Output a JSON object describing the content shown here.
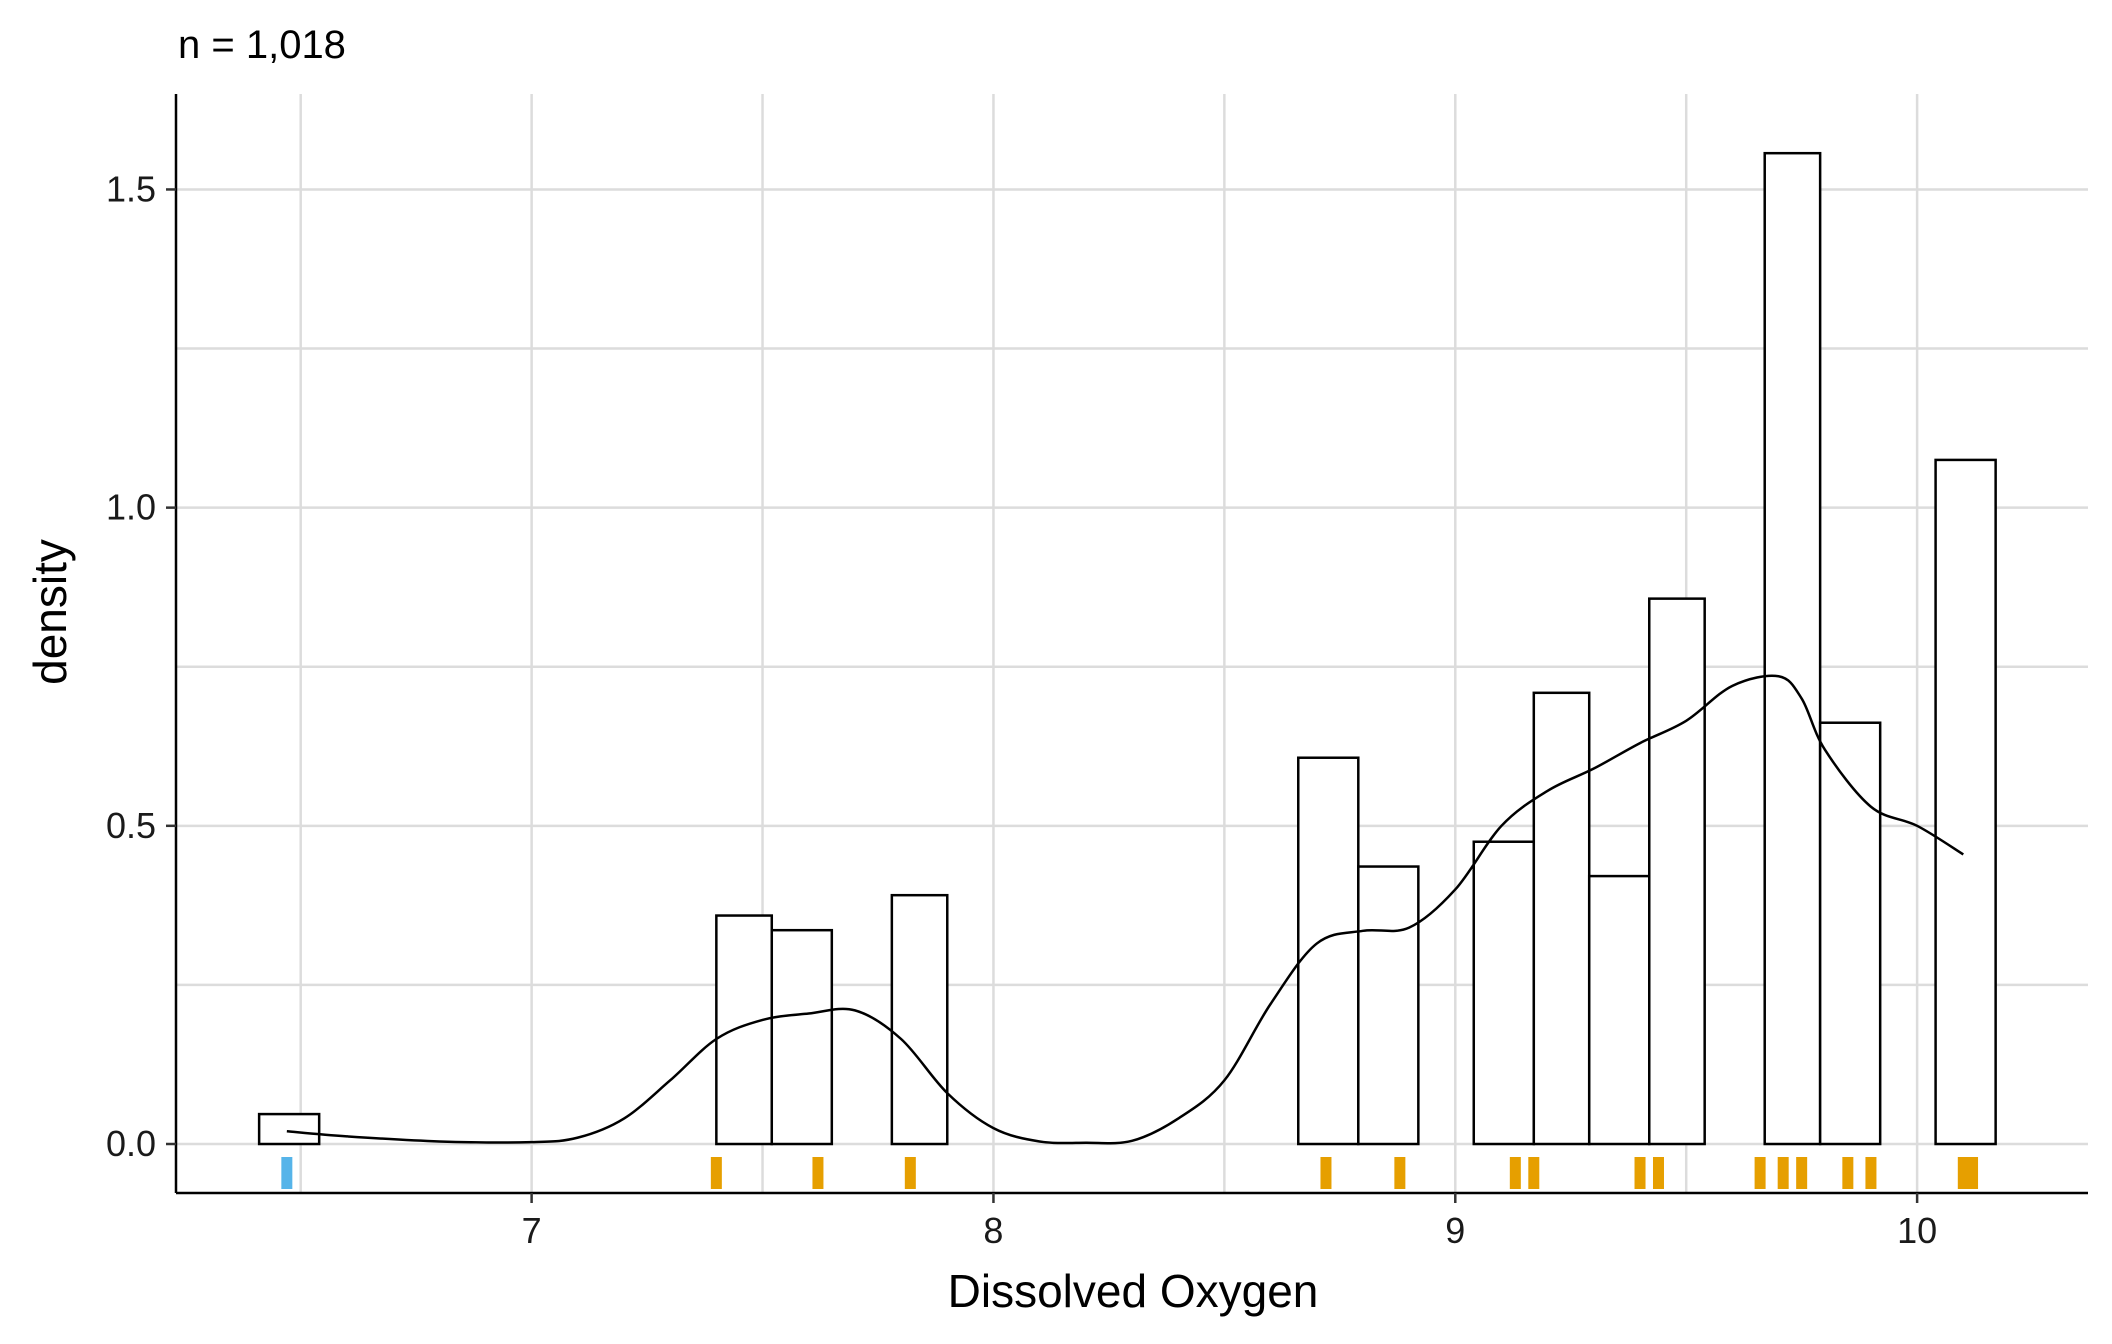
{
  "chart_data": {
    "type": "bar",
    "subtitle": "n = 1,018",
    "xlabel": "Dissolved Oxygen",
    "ylabel": "density",
    "xlim": [
      6.23,
      10.37
    ],
    "ylim": [
      -0.077,
      1.65
    ],
    "x_ticks": [
      7,
      8,
      9,
      10
    ],
    "x_tick_labels": [
      "7",
      "8",
      "9",
      "10"
    ],
    "x_minor_gridlines": [
      6.5,
      7.5,
      8.5,
      9.5
    ],
    "y_ticks": [
      0.0,
      0.5,
      1.0,
      1.5
    ],
    "y_tick_labels": [
      "0.0",
      "0.5",
      "1.0",
      "1.5"
    ],
    "y_minor_gridlines": [
      0.25,
      0.75,
      1.25
    ],
    "grid": true,
    "histogram": {
      "bin_width": 0.126,
      "bins": [
        {
          "x0": 6.41,
          "x1": 6.54,
          "density": 0.047
        },
        {
          "x0": 7.4,
          "x1": 7.52,
          "density": 0.359
        },
        {
          "x0": 7.52,
          "x1": 7.65,
          "density": 0.336
        },
        {
          "x0": 7.78,
          "x1": 7.9,
          "density": 0.391
        },
        {
          "x0": 8.66,
          "x1": 8.79,
          "density": 0.607
        },
        {
          "x0": 8.79,
          "x1": 8.92,
          "density": 0.436
        },
        {
          "x0": 9.04,
          "x1": 9.17,
          "density": 0.475
        },
        {
          "x0": 9.17,
          "x1": 9.29,
          "density": 0.709
        },
        {
          "x0": 9.29,
          "x1": 9.42,
          "density": 0.421
        },
        {
          "x0": 9.42,
          "x1": 9.54,
          "density": 0.857
        },
        {
          "x0": 9.67,
          "x1": 9.79,
          "density": 1.557
        },
        {
          "x0": 9.79,
          "x1": 9.92,
          "density": 0.662
        },
        {
          "x0": 10.04,
          "x1": 10.17,
          "density": 1.075
        }
      ],
      "fill": "#ffffff",
      "stroke": "#000000"
    },
    "density_curve": {
      "x": [
        6.47,
        6.6,
        6.8,
        7.0,
        7.1,
        7.2,
        7.3,
        7.4,
        7.5,
        7.6,
        7.7,
        7.8,
        7.9,
        8.0,
        8.1,
        8.2,
        8.3,
        8.4,
        8.5,
        8.6,
        8.7,
        8.8,
        8.9,
        9.0,
        9.1,
        9.2,
        9.3,
        9.4,
        9.5,
        9.6,
        9.7,
        9.75,
        9.8,
        9.9,
        10.0,
        10.1
      ],
      "y": [
        0.02,
        0.012,
        0.004,
        0.003,
        0.01,
        0.04,
        0.1,
        0.165,
        0.195,
        0.205,
        0.21,
        0.165,
        0.08,
        0.025,
        0.004,
        0.002,
        0.005,
        0.04,
        0.1,
        0.22,
        0.315,
        0.335,
        0.34,
        0.4,
        0.5,
        0.555,
        0.59,
        0.63,
        0.665,
        0.72,
        0.735,
        0.7,
        0.62,
        0.53,
        0.5,
        0.455
      ],
      "stroke": "#000000"
    },
    "rug": {
      "orange": [
        7.4,
        7.62,
        7.82,
        8.72,
        8.88,
        9.13,
        9.17,
        9.4,
        9.44,
        9.66,
        9.71,
        9.75,
        9.85,
        9.9,
        10.1,
        10.12
      ],
      "blue": [
        6.47
      ],
      "colors": {
        "orange": "#E69F00",
        "blue": "#56B4E9"
      }
    }
  }
}
